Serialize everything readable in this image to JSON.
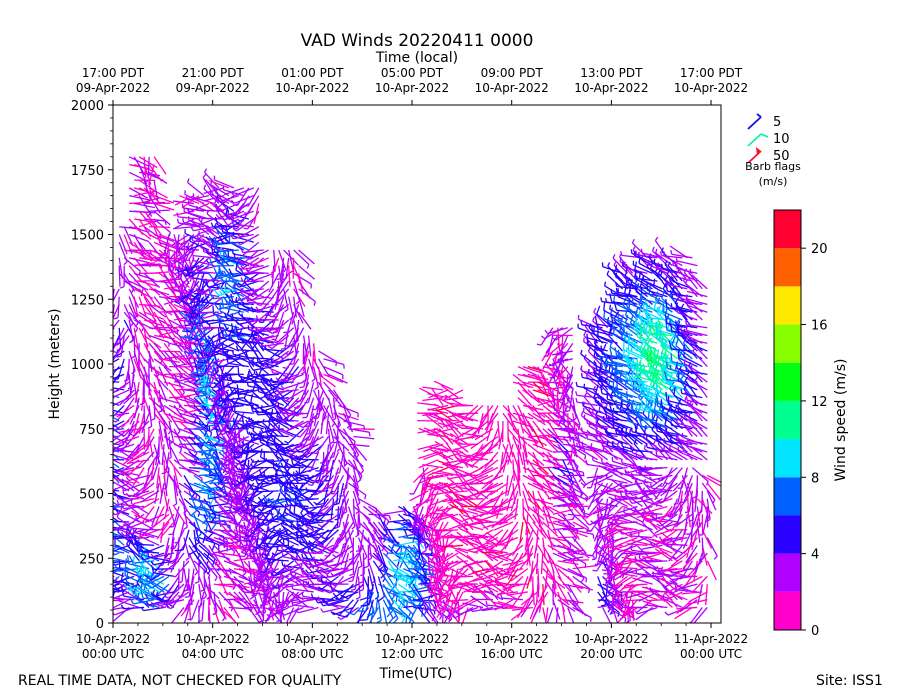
{
  "chart_data": {
    "type": "wind-barb-time-height",
    "title": "VAD Winds 20220411 0000",
    "top_axis_label": "Time (local)",
    "xlabel": "Time(UTC)",
    "ylabel": "Height (meters)",
    "ylim": [
      0,
      2000
    ],
    "xlim_hours_utc": [
      0,
      24.4
    ],
    "y_ticks": [
      0,
      250,
      500,
      750,
      1000,
      1250,
      1500,
      1750,
      2000
    ],
    "x_ticks": [
      {
        "hour": 0,
        "line1": "10-Apr-2022",
        "line2": "00:00 UTC"
      },
      {
        "hour": 4,
        "line1": "10-Apr-2022",
        "line2": "04:00 UTC"
      },
      {
        "hour": 8,
        "line1": "10-Apr-2022",
        "line2": "08:00 UTC"
      },
      {
        "hour": 12,
        "line1": "10-Apr-2022",
        "line2": "12:00 UTC"
      },
      {
        "hour": 16,
        "line1": "10-Apr-2022",
        "line2": "16:00 UTC"
      },
      {
        "hour": 20,
        "line1": "10-Apr-2022",
        "line2": "20:00 UTC"
      },
      {
        "hour": 24,
        "line1": "11-Apr-2022",
        "line2": "00:00 UTC"
      }
    ],
    "top_ticks": [
      {
        "hour": 0,
        "line1": "17:00 PDT",
        "line2": "09-Apr-2022"
      },
      {
        "hour": 4,
        "line1": "21:00 PDT",
        "line2": "09-Apr-2022"
      },
      {
        "hour": 8,
        "line1": "01:00 PDT",
        "line2": "10-Apr-2022"
      },
      {
        "hour": 12,
        "line1": "05:00 PDT",
        "line2": "10-Apr-2022"
      },
      {
        "hour": 16,
        "line1": "09:00 PDT",
        "line2": "10-Apr-2022"
      },
      {
        "hour": 20,
        "line1": "13:00 PDT",
        "line2": "10-Apr-2022"
      },
      {
        "hour": 24,
        "line1": "17:00 PDT",
        "line2": "10-Apr-2022"
      }
    ],
    "barb_legend": {
      "entries": [
        {
          "value": "5",
          "color": "#0a10e8"
        },
        {
          "value": "10",
          "color": "#12f0b0"
        },
        {
          "value": "50",
          "color": "#ff1030"
        }
      ],
      "caption_line1": "Barb flags",
      "caption_line2": "(m/s)"
    },
    "colorbar": {
      "label": "Wind speed (m/s)",
      "range": [
        0,
        22
      ],
      "ticks": [
        0,
        4,
        8,
        12,
        16,
        20
      ],
      "bins": [
        {
          "from": 0,
          "to": 2,
          "color": "#ff00cc"
        },
        {
          "from": 2,
          "to": 4,
          "color": "#b000ff"
        },
        {
          "from": 4,
          "to": 6,
          "color": "#2a00ff"
        },
        {
          "from": 6,
          "to": 8,
          "color": "#0060ff"
        },
        {
          "from": 8,
          "to": 10,
          "color": "#00e4ff"
        },
        {
          "from": 10,
          "to": 12,
          "color": "#00ff90"
        },
        {
          "from": 12,
          "to": 14,
          "color": "#00ff10"
        },
        {
          "from": 14,
          "to": 16,
          "color": "#88ff00"
        },
        {
          "from": 16,
          "to": 18,
          "color": "#ffe800"
        },
        {
          "from": 18,
          "to": 20,
          "color": "#ff6000"
        },
        {
          "from": 20,
          "to": 22,
          "color": "#ff0030"
        }
      ]
    },
    "series_extent": [
      {
        "start_hour": 0.0,
        "end_hour": 9.6,
        "max_height": 1800,
        "dominant_speed_ms": "3-9"
      },
      {
        "start_hour": 9.6,
        "end_hour": 12.6,
        "max_height": 800,
        "dominant_speed_ms": "2-8"
      },
      {
        "start_hour": 12.6,
        "end_hour": 18.6,
        "max_height": 1150,
        "dominant_speed_ms": "1-4"
      },
      {
        "start_hour": 19.4,
        "end_hour": 24.0,
        "max_height": 1450,
        "dominant_speed_ms": "2-11"
      }
    ]
  },
  "footer": {
    "disclaimer": "REAL TIME DATA, NOT CHECKED FOR QUALITY",
    "site": "Site: ISS1"
  }
}
